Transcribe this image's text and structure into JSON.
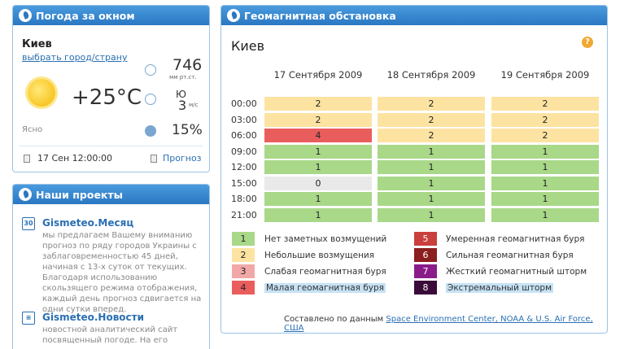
{
  "weather": {
    "header": "Погода за окном",
    "city": "Киев",
    "change_link": "выбрать город/страну",
    "temperature": "+25°C",
    "condition": "Ясно",
    "pressure": "746",
    "pressure_unit": "мм рт.ст.",
    "wind_dir": "Ю",
    "wind_speed": "3",
    "wind_unit": "м/с",
    "humidity": "15%",
    "date": "17 Сен 12:00:00",
    "forecast_link": "Прогноз"
  },
  "projects": {
    "header": "Наши проекты",
    "items": [
      {
        "icon": "30",
        "title": "Gismeteo.Месяц",
        "text": "мы предлагаем Вашему вниманию прогноз по ряду городов Украины с заблаговременностью 45 дней, начиная с 13-х суток от текущих. Благодаря использованию скользящего режима отображения, каждый день прогноз сдвигается на одни сутки вперед."
      },
      {
        "icon": "≡",
        "title": "Gismeteo.Новости",
        "text": "новостной аналитический сайт посвященный погоде. На его"
      }
    ]
  },
  "geo": {
    "header": "Геомагнитная обстановка",
    "city": "Киев",
    "help": "?",
    "dates": [
      "17 Сентября 2009",
      "18 Сентября 2009",
      "19 Сентября 2009"
    ],
    "times": [
      "00:00",
      "03:00",
      "06:00",
      "09:00",
      "12:00",
      "15:00",
      "18:00",
      "21:00"
    ],
    "values": [
      [
        "2",
        "2",
        "2"
      ],
      [
        "2",
        "2",
        "2"
      ],
      [
        "4",
        "2",
        "2"
      ],
      [
        "1",
        "1",
        "1"
      ],
      [
        "1",
        "1",
        "1"
      ],
      [
        "0",
        "1",
        "1"
      ],
      [
        "1",
        "1",
        "1"
      ],
      [
        "1",
        "1",
        "1"
      ]
    ],
    "legend": [
      {
        "level": "1",
        "label": "Нет заметных возмущений"
      },
      {
        "level": "2",
        "label": "Небольшие возмущения"
      },
      {
        "level": "3",
        "label": "Слабая геомагнитная буря"
      },
      {
        "level": "4",
        "label": "Малая геомагнитная буря"
      },
      {
        "level": "5",
        "label": "Умеренная геомагнитная буря"
      },
      {
        "level": "6",
        "label": "Сильная геомагнитная буря"
      },
      {
        "level": "7",
        "label": "Жесткий геомагнитный шторм"
      },
      {
        "level": "8",
        "label": "Экстремальный шторм"
      }
    ],
    "source_prefix": "Составлено по данным",
    "source_link": "Space Environment Center, NOAA & U.S. Air Force, США"
  },
  "colors": {
    "header": "#2a77c2",
    "level_0": "#e9e9e9",
    "level_1": "#a8d888",
    "level_2": "#fde3a2",
    "level_3": "#f2a8a8",
    "level_4": "#ea5d5d",
    "level_5": "#c9403d",
    "level_6": "#8b1e1e",
    "level_7": "#8a1c8a",
    "level_8": "#3a0a3a"
  }
}
